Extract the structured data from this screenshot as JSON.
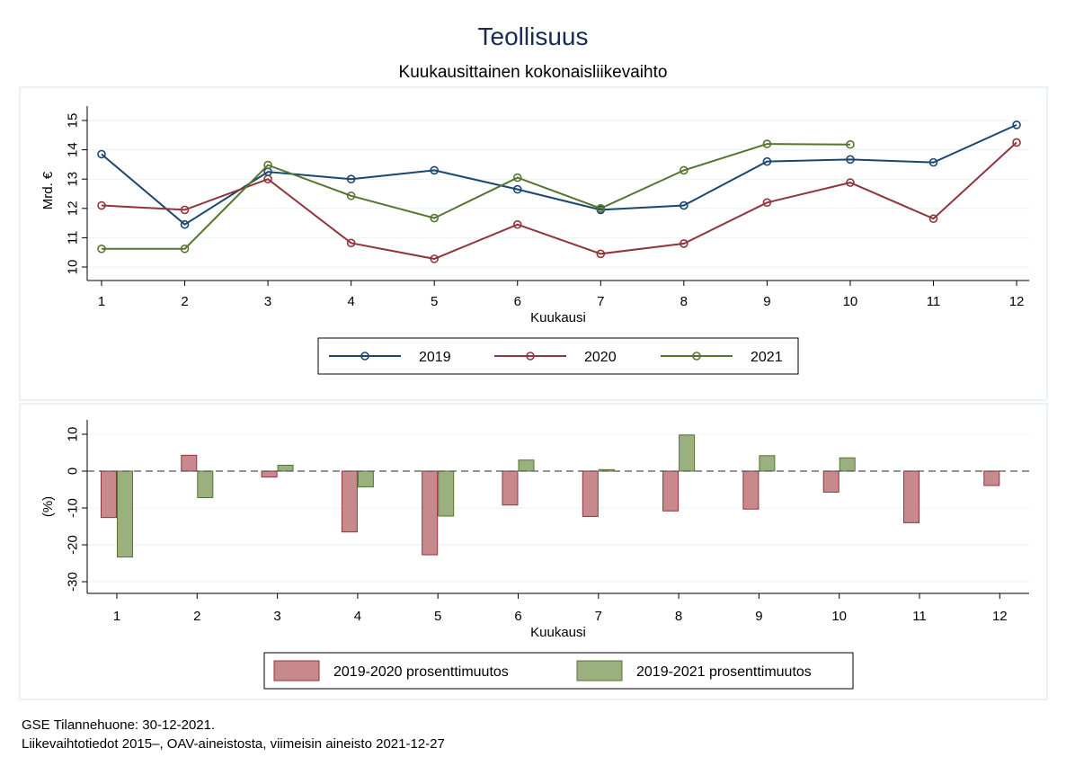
{
  "title": "Teollisuus",
  "subtitle": "Kuukausittainen kokonaisliikevaihto",
  "footer": {
    "line1": "GSE Tilannehuone: 30-12-2021.",
    "line2": "Liikevaihtotiedot 2015–, OAV-aineistosta, viimeisin aineisto 2021-12-27"
  },
  "colors": {
    "series_2019": "#1a476f",
    "series_2020": "#90353b",
    "series_2021": "#55752f",
    "bar_2020_fill": "#c8898d",
    "bar_2021_fill": "#9bb07f",
    "title": "#1a2b50",
    "panel_border": "#eaf2f3"
  },
  "chart_data": [
    {
      "type": "line",
      "xlabel": "Kuukausi",
      "ylabel": "Mrd. €",
      "x": [
        1,
        2,
        3,
        4,
        5,
        6,
        7,
        8,
        9,
        10,
        11,
        12
      ],
      "xlim": [
        1,
        12
      ],
      "ylim": [
        10,
        15
      ],
      "yticks": [
        10,
        11,
        12,
        13,
        14,
        15
      ],
      "grid": true,
      "legend_position": "bottom",
      "series": [
        {
          "name": "2019",
          "values": [
            13.85,
            11.45,
            13.25,
            13.0,
            13.3,
            12.65,
            11.95,
            12.1,
            13.6,
            13.67,
            13.57,
            14.85
          ]
        },
        {
          "name": "2020",
          "values": [
            12.1,
            11.95,
            13.0,
            10.82,
            10.28,
            11.45,
            10.45,
            10.8,
            12.2,
            12.88,
            11.65,
            14.25
          ]
        },
        {
          "name": "2021",
          "values": [
            10.62,
            10.62,
            13.48,
            12.43,
            11.67,
            13.05,
            12.0,
            13.3,
            14.2,
            14.18,
            null,
            null
          ]
        }
      ]
    },
    {
      "type": "bar",
      "xlabel": "Kuukausi",
      "ylabel": "(%)",
      "categories": [
        "1",
        "2",
        "3",
        "4",
        "5",
        "6",
        "7",
        "8",
        "9",
        "10",
        "11",
        "12"
      ],
      "ylim": [
        -30,
        10
      ],
      "yticks": [
        10,
        0,
        -10,
        -20,
        -30
      ],
      "grid": true,
      "reference_line": 0,
      "legend_position": "bottom",
      "series": [
        {
          "name": "2019-2020 prosenttimuutos",
          "values": [
            -12.6,
            4.3,
            -1.6,
            -16.5,
            -22.7,
            -9.2,
            -12.3,
            -10.8,
            -10.3,
            -5.7,
            -14.0,
            -3.9
          ]
        },
        {
          "name": "2019-2021 prosenttimuutos",
          "values": [
            -23.3,
            -7.2,
            1.6,
            -4.3,
            -12.2,
            3.0,
            0.4,
            9.8,
            4.2,
            3.6,
            null,
            null
          ]
        }
      ]
    }
  ]
}
